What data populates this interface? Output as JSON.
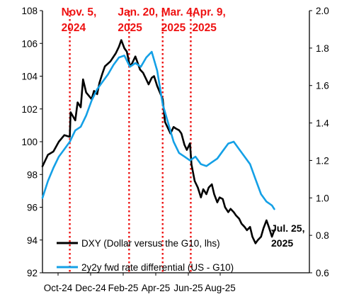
{
  "chart_data": {
    "type": "line",
    "title": "",
    "xlabel": "",
    "ylabel_left": "",
    "ylabel_right": "",
    "x_tick_labels": [
      "Oct-24",
      "Dec-24",
      "Feb-25",
      "Apr-25",
      "Jun-25",
      "Aug-25"
    ],
    "y_left_ticks": [
      "92",
      "94",
      "96",
      "98",
      "100",
      "102",
      "104",
      "106",
      "108"
    ],
    "y_left_lim": [
      92,
      108
    ],
    "y_right_ticks": [
      "0.6",
      "0.8",
      "1.0",
      "1.2",
      "1.4",
      "1.6",
      "1.8",
      "2.0"
    ],
    "y_right_lim": [
      0.6,
      2.0
    ],
    "x_range": [
      "2024-10-01",
      "2025-09-08"
    ],
    "grid": false,
    "legend_position": "bottom-left, inside plot",
    "events": [
      {
        "date": "2024-11-05",
        "line1": "Nov. 5,",
        "line2": "2024"
      },
      {
        "date": "2025-01-20",
        "line1": "Jan. 20,",
        "line2": "2025"
      },
      {
        "date": "2025-03-04",
        "line1": "Mar. 4,",
        "line2": "2025"
      },
      {
        "date": "2025-04-09",
        "line1": "Apr. 9,",
        "line2": "2025"
      }
    ],
    "end_annotation": {
      "line1": "Jul. 25,",
      "line2": "2025"
    },
    "series": [
      {
        "name": "DXY (Dollar versus the G10, lhs)",
        "axis": "left",
        "color": "#000000",
        "points": [
          [
            "2024-10-01",
            98.5
          ],
          [
            "2024-10-08",
            99.2
          ],
          [
            "2024-10-15",
            99.4
          ],
          [
            "2024-10-22",
            100.0
          ],
          [
            "2024-10-29",
            100.4
          ],
          [
            "2024-11-05",
            100.3
          ],
          [
            "2024-11-06",
            101.8
          ],
          [
            "2024-11-12",
            101.3
          ],
          [
            "2024-11-15",
            102.4
          ],
          [
            "2024-11-19",
            102.1
          ],
          [
            "2024-11-22",
            103.8
          ],
          [
            "2024-11-26",
            103.0
          ],
          [
            "2024-12-03",
            102.6
          ],
          [
            "2024-12-06",
            103.1
          ],
          [
            "2024-12-10",
            102.9
          ],
          [
            "2024-12-13",
            103.6
          ],
          [
            "2024-12-17",
            104.2
          ],
          [
            "2024-12-20",
            104.6
          ],
          [
            "2024-12-27",
            104.9
          ],
          [
            "2025-01-03",
            105.4
          ],
          [
            "2025-01-07",
            105.8
          ],
          [
            "2025-01-10",
            106.2
          ],
          [
            "2025-01-14",
            105.7
          ],
          [
            "2025-01-17",
            105.5
          ],
          [
            "2025-01-21",
            104.6
          ],
          [
            "2025-01-24",
            104.8
          ],
          [
            "2025-01-28",
            105.2
          ],
          [
            "2025-02-03",
            104.4
          ],
          [
            "2025-02-07",
            104.2
          ],
          [
            "2025-02-11",
            103.8
          ],
          [
            "2025-02-14",
            103.5
          ],
          [
            "2025-02-18",
            103.9
          ],
          [
            "2025-02-21",
            104.0
          ],
          [
            "2025-02-25",
            103.4
          ],
          [
            "2025-03-04",
            102.6
          ],
          [
            "2025-03-07",
            101.2
          ],
          [
            "2025-03-11",
            100.8
          ],
          [
            "2025-03-14",
            100.5
          ],
          [
            "2025-03-18",
            100.9
          ],
          [
            "2025-03-21",
            100.8
          ],
          [
            "2025-03-25",
            100.7
          ],
          [
            "2025-03-28",
            100.5
          ],
          [
            "2025-04-01",
            99.8
          ],
          [
            "2025-04-04",
            99.5
          ],
          [
            "2025-04-08",
            99.9
          ],
          [
            "2025-04-10",
            98.6
          ],
          [
            "2025-04-14",
            97.6
          ],
          [
            "2025-04-18",
            97.2
          ],
          [
            "2025-04-22",
            96.6
          ],
          [
            "2025-04-25",
            97.1
          ],
          [
            "2025-04-29",
            96.8
          ],
          [
            "2025-05-02",
            97.2
          ],
          [
            "2025-05-06",
            97.4
          ],
          [
            "2025-05-09",
            96.8
          ],
          [
            "2025-05-13",
            96.3
          ],
          [
            "2025-05-16",
            96.6
          ],
          [
            "2025-05-20",
            96.5
          ],
          [
            "2025-05-23",
            96.0
          ],
          [
            "2025-05-27",
            95.7
          ],
          [
            "2025-05-30",
            95.9
          ],
          [
            "2025-06-03",
            95.7
          ],
          [
            "2025-06-06",
            95.5
          ],
          [
            "2025-06-10",
            95.3
          ],
          [
            "2025-06-13",
            95.0
          ],
          [
            "2025-06-17",
            94.8
          ],
          [
            "2025-06-20",
            94.6
          ],
          [
            "2025-06-24",
            94.8
          ],
          [
            "2025-06-27",
            94.2
          ],
          [
            "2025-07-01",
            93.8
          ],
          [
            "2025-07-04",
            94.0
          ],
          [
            "2025-07-08",
            94.2
          ],
          [
            "2025-07-11",
            94.7
          ],
          [
            "2025-07-15",
            95.2
          ],
          [
            "2025-07-18",
            94.8
          ],
          [
            "2025-07-22",
            94.2
          ],
          [
            "2025-07-25",
            94.6
          ]
        ]
      },
      {
        "name": "2y2y fwd rate differential (US - G10)",
        "axis": "right",
        "color": "#14a0e6",
        "points": [
          [
            "2024-10-01",
            1.0
          ],
          [
            "2024-10-08",
            1.09
          ],
          [
            "2024-10-15",
            1.16
          ],
          [
            "2024-10-22",
            1.22
          ],
          [
            "2024-10-29",
            1.26
          ],
          [
            "2024-11-05",
            1.3
          ],
          [
            "2024-11-12",
            1.36
          ],
          [
            "2024-11-19",
            1.38
          ],
          [
            "2024-11-26",
            1.44
          ],
          [
            "2024-12-03",
            1.52
          ],
          [
            "2024-12-10",
            1.58
          ],
          [
            "2024-12-17",
            1.62
          ],
          [
            "2024-12-24",
            1.66
          ],
          [
            "2024-12-31",
            1.71
          ],
          [
            "2025-01-07",
            1.75
          ],
          [
            "2025-01-14",
            1.76
          ],
          [
            "2025-01-21",
            1.7
          ],
          [
            "2025-01-28",
            1.72
          ],
          [
            "2025-02-04",
            1.7
          ],
          [
            "2025-02-11",
            1.75
          ],
          [
            "2025-02-18",
            1.78
          ],
          [
            "2025-02-25",
            1.68
          ],
          [
            "2025-03-04",
            1.5
          ],
          [
            "2025-03-11",
            1.4
          ],
          [
            "2025-03-18",
            1.3
          ],
          [
            "2025-03-25",
            1.24
          ],
          [
            "2025-04-01",
            1.22
          ],
          [
            "2025-04-08",
            1.2
          ],
          [
            "2025-04-15",
            1.22
          ],
          [
            "2025-04-22",
            1.18
          ],
          [
            "2025-04-29",
            1.17
          ],
          [
            "2025-05-06",
            1.19
          ],
          [
            "2025-05-13",
            1.21
          ],
          [
            "2025-05-20",
            1.25
          ],
          [
            "2025-05-27",
            1.29
          ],
          [
            "2025-06-03",
            1.3
          ],
          [
            "2025-06-10",
            1.26
          ],
          [
            "2025-06-17",
            1.22
          ],
          [
            "2025-06-24",
            1.18
          ],
          [
            "2025-07-01",
            1.1
          ],
          [
            "2025-07-08",
            1.02
          ],
          [
            "2025-07-15",
            0.98
          ],
          [
            "2025-07-22",
            0.96
          ],
          [
            "2025-07-25",
            0.94
          ]
        ]
      }
    ]
  }
}
